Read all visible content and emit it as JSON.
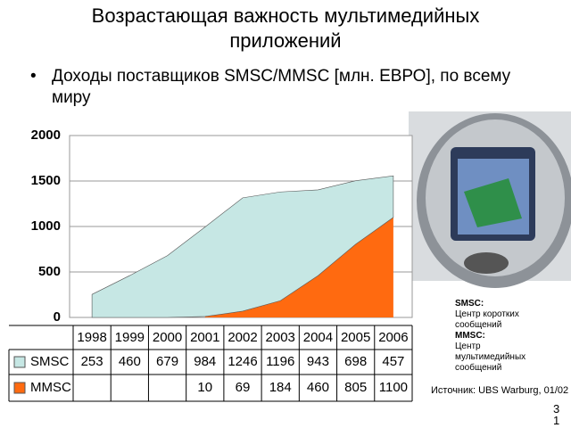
{
  "slide": {
    "title": "Возрастающая важность мультимедийных приложений",
    "bullet": "Доходы поставщиков SMSC/MMSC [млн. ЕВРО], по всему миру",
    "notes": {
      "smsc_term": "SMSC:",
      "smsc_def": "Центр коротких сообщений",
      "mmsc_term": "MMSC:",
      "mmsc_def": "Центр мультимедийных сообщений"
    },
    "source": "Источник: UBS Warburg, 01/02",
    "page_number": "31"
  },
  "chart_data": {
    "type": "area",
    "stacked": true,
    "categories": [
      "1998",
      "1999",
      "2000",
      "2001",
      "2002",
      "2003",
      "2004",
      "2005",
      "2006"
    ],
    "series": [
      {
        "name": "SMSC",
        "color": "#c6e7e4",
        "values": [
          253,
          460,
          679,
          984,
          1246,
          1196,
          943,
          698,
          457
        ]
      },
      {
        "name": "MMSC",
        "color": "#ff6a10",
        "values": [
          null,
          null,
          null,
          10,
          69,
          184,
          460,
          805,
          1100
        ]
      }
    ],
    "ylim": [
      0,
      2000
    ],
    "yticks": [
      0,
      500,
      1000,
      1500,
      2000
    ],
    "grid": true
  }
}
